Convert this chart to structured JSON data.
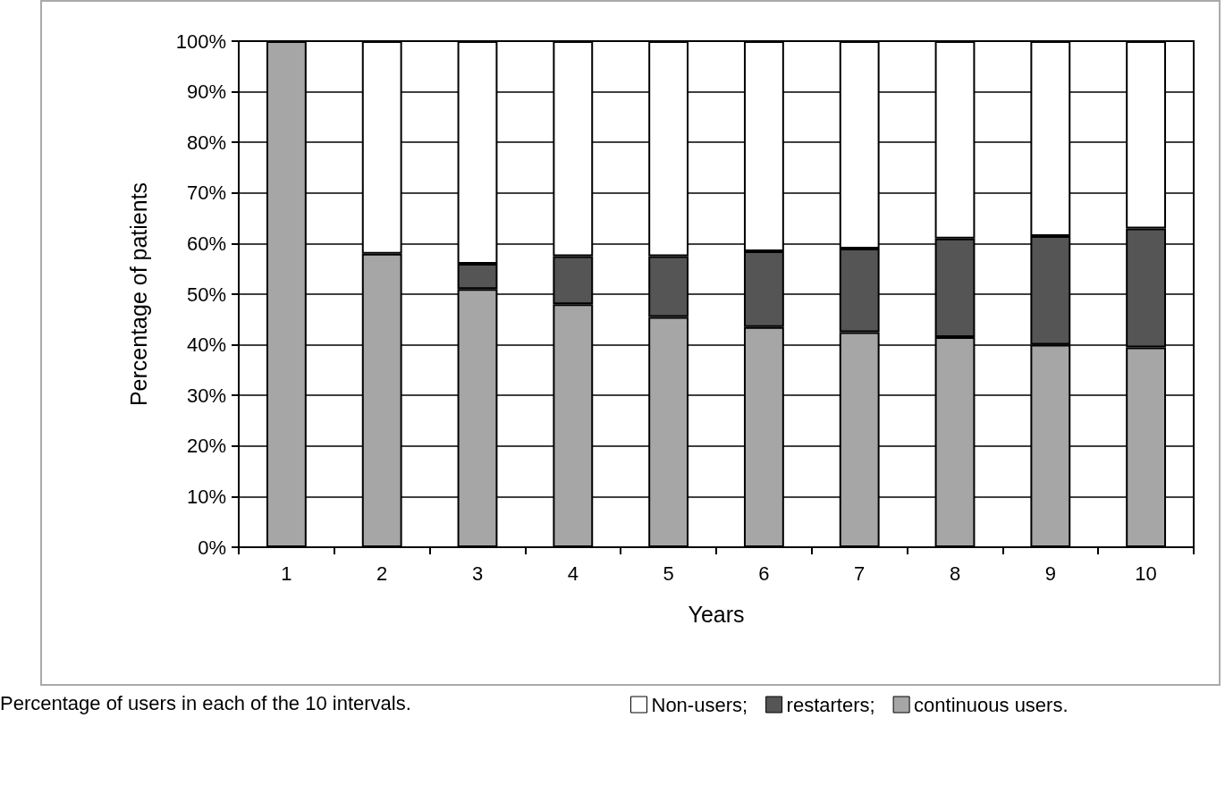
{
  "chart_data": {
    "type": "bar",
    "stacked": true,
    "xlabel": "Years",
    "ylabel": "Percentage of patients",
    "categories": [
      "1",
      "2",
      "3",
      "4",
      "5",
      "6",
      "7",
      "8",
      "9",
      "10"
    ],
    "series": [
      {
        "name": "continuous users.",
        "color": "#a6a6a6",
        "values": [
          100,
          58,
          51,
          48,
          45.5,
          43.5,
          42.5,
          41.5,
          40,
          39.5
        ]
      },
      {
        "name": "restarters;",
        "color": "#555555",
        "values": [
          0,
          0,
          5,
          9.5,
          12,
          15,
          16.5,
          19.5,
          21.5,
          23.5
        ]
      },
      {
        "name": "Non-users;",
        "color": "#ffffff",
        "values": [
          0,
          42,
          44,
          42.5,
          42.5,
          41.5,
          41,
          39,
          38.5,
          37
        ]
      }
    ],
    "ylim": [
      0,
      100
    ],
    "yticks": [
      {
        "value": 0,
        "label": "0%"
      },
      {
        "value": 10,
        "label": "10%"
      },
      {
        "value": 20,
        "label": "20%"
      },
      {
        "value": 30,
        "label": "30%"
      },
      {
        "value": 40,
        "label": "40%"
      },
      {
        "value": 50,
        "label": "50%"
      },
      {
        "value": 60,
        "label": "60%"
      },
      {
        "value": 70,
        "label": "70%"
      },
      {
        "value": 80,
        "label": "80%"
      },
      {
        "value": 90,
        "label": "90%"
      },
      {
        "value": 100,
        "label": "100%"
      }
    ],
    "grid": "y",
    "legend": "bottom",
    "annotations": [
      "Percentage of users in each of the 10 intervals."
    ]
  }
}
